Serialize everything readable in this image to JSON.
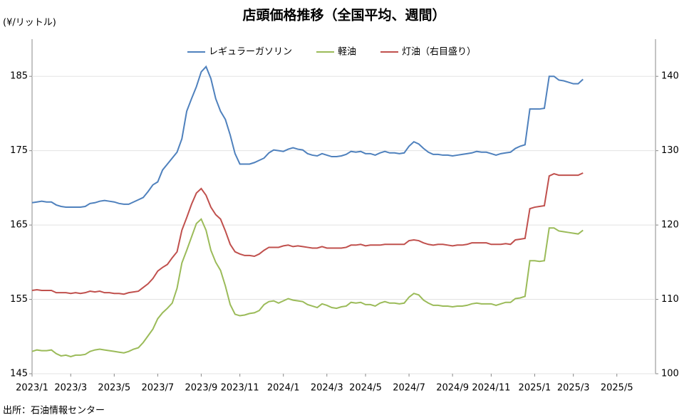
{
  "chart_data": {
    "type": "line",
    "title": "店頭価格推移（全国平均、週間）",
    "y_label": "(¥/リットル)",
    "source": "出所：石油情報センター",
    "categories": [
      "2023/1",
      null,
      null,
      null,
      null,
      null,
      null,
      null,
      "2023/3",
      null,
      null,
      null,
      null,
      null,
      null,
      null,
      null,
      "2023/5",
      null,
      null,
      null,
      null,
      null,
      null,
      null,
      null,
      "2023/7",
      null,
      null,
      null,
      null,
      null,
      null,
      null,
      null,
      "2023/9",
      null,
      null,
      null,
      null,
      null,
      null,
      null,
      "2023/11",
      null,
      null,
      null,
      null,
      null,
      null,
      null,
      null,
      "2024/1",
      null,
      null,
      null,
      null,
      null,
      null,
      null,
      null,
      "2024/3",
      null,
      null,
      null,
      null,
      null,
      null,
      null,
      "2024/5",
      null,
      null,
      null,
      null,
      null,
      null,
      null,
      null,
      "2024/7",
      null,
      null,
      null,
      null,
      null,
      null,
      null,
      null,
      "2024/9",
      null,
      null,
      null,
      null,
      null,
      null,
      null,
      "2024/11",
      null,
      null,
      null,
      null,
      null,
      null,
      null,
      null,
      "2025/1",
      null,
      null,
      null,
      null,
      null,
      null,
      null,
      "2025/3",
      null,
      null,
      null,
      null,
      null,
      null,
      null,
      null,
      "2025/5",
      null,
      null,
      null,
      null,
      null,
      null,
      null
    ],
    "series": [
      {
        "name": "レギュラーガソリン",
        "color": "#4f81bd",
        "axis": "y",
        "values": [
          168.0,
          168.1,
          168.2,
          168.1,
          168.1,
          167.7,
          167.5,
          167.4,
          167.4,
          167.4,
          167.4,
          167.5,
          167.9,
          168.0,
          168.2,
          168.3,
          168.2,
          168.1,
          167.9,
          167.8,
          167.8,
          168.1,
          168.4,
          168.7,
          169.5,
          170.4,
          170.8,
          172.4,
          173.2,
          174.0,
          174.8,
          176.6,
          180.3,
          182.0,
          183.6,
          185.6,
          186.3,
          184.7,
          182.0,
          180.3,
          179.2,
          177.1,
          174.6,
          173.2,
          173.2,
          173.2,
          173.4,
          173.7,
          174.0,
          174.7,
          175.1,
          175.0,
          174.9,
          175.2,
          175.4,
          175.2,
          175.1,
          174.6,
          174.4,
          174.3,
          174.6,
          174.4,
          174.2,
          174.2,
          174.3,
          174.5,
          174.9,
          174.8,
          174.9,
          174.6,
          174.6,
          174.4,
          174.7,
          174.9,
          174.7,
          174.7,
          174.6,
          174.7,
          175.6,
          176.2,
          175.9,
          175.3,
          174.8,
          174.5,
          174.5,
          174.4,
          174.4,
          174.3,
          174.4,
          174.5,
          174.6,
          174.7,
          174.9,
          174.8,
          174.8,
          174.6,
          174.4,
          174.6,
          174.7,
          174.8,
          175.3,
          175.6,
          175.8,
          180.6,
          180.6,
          180.6,
          180.7,
          185.0,
          185.0,
          184.5,
          184.4,
          184.2,
          184.0,
          184.0,
          184.6,
          null,
          null,
          null,
          null,
          null,
          null,
          null,
          null,
          null,
          null,
          null,
          null,
          null,
          null
        ]
      },
      {
        "name": "軽油",
        "color": "#9bbb59",
        "axis": "y",
        "values": [
          148.0,
          148.2,
          148.1,
          148.1,
          148.2,
          147.7,
          147.4,
          147.5,
          147.3,
          147.5,
          147.5,
          147.6,
          148.0,
          148.2,
          148.3,
          148.2,
          148.1,
          148.0,
          147.9,
          147.8,
          148.0,
          148.3,
          148.5,
          149.2,
          150.1,
          151.0,
          152.4,
          153.2,
          153.8,
          154.5,
          156.5,
          159.9,
          161.6,
          163.4,
          165.2,
          165.8,
          164.3,
          161.6,
          160.0,
          158.9,
          156.8,
          154.3,
          153.0,
          152.8,
          152.9,
          153.1,
          153.2,
          153.5,
          154.3,
          154.7,
          154.8,
          154.5,
          154.8,
          155.1,
          154.9,
          154.8,
          154.7,
          154.3,
          154.1,
          153.9,
          154.4,
          154.2,
          153.9,
          153.8,
          154.0,
          154.1,
          154.6,
          154.5,
          154.6,
          154.3,
          154.3,
          154.1,
          154.5,
          154.7,
          154.5,
          154.5,
          154.4,
          154.5,
          155.3,
          155.8,
          155.6,
          154.9,
          154.5,
          154.2,
          154.2,
          154.1,
          154.1,
          154.0,
          154.1,
          154.1,
          154.2,
          154.4,
          154.5,
          154.4,
          154.4,
          154.4,
          154.2,
          154.4,
          154.6,
          154.6,
          155.1,
          155.2,
          155.4,
          160.2,
          160.2,
          160.1,
          160.2,
          164.6,
          164.6,
          164.2,
          164.1,
          164.0,
          163.9,
          163.8,
          164.3,
          null,
          null,
          null,
          null,
          null,
          null,
          null,
          null,
          null,
          null,
          null,
          null,
          null,
          null
        ]
      },
      {
        "name": "灯油（右目盛り）",
        "color": "#c0504d",
        "axis": "y2",
        "values": [
          111.2,
          111.3,
          111.2,
          111.2,
          111.2,
          110.9,
          110.9,
          110.9,
          110.8,
          110.9,
          110.8,
          110.9,
          111.1,
          111.0,
          111.1,
          110.9,
          110.9,
          110.8,
          110.8,
          110.7,
          110.9,
          111.0,
          111.1,
          111.6,
          112.1,
          112.8,
          113.8,
          114.3,
          114.7,
          115.6,
          116.4,
          119.3,
          121.0,
          122.8,
          124.3,
          124.9,
          124.0,
          122.4,
          121.4,
          120.8,
          119.2,
          117.4,
          116.4,
          116.1,
          115.9,
          115.9,
          115.8,
          116.1,
          116.6,
          117.0,
          117.0,
          117.0,
          117.2,
          117.3,
          117.1,
          117.2,
          117.1,
          117.0,
          116.9,
          116.9,
          117.1,
          116.9,
          116.9,
          116.9,
          116.9,
          117.0,
          117.3,
          117.3,
          117.4,
          117.2,
          117.3,
          117.3,
          117.3,
          117.4,
          117.4,
          117.4,
          117.4,
          117.4,
          117.9,
          118.0,
          117.9,
          117.6,
          117.4,
          117.3,
          117.4,
          117.4,
          117.3,
          117.2,
          117.3,
          117.3,
          117.4,
          117.6,
          117.6,
          117.6,
          117.6,
          117.4,
          117.4,
          117.4,
          117.5,
          117.4,
          118.0,
          118.1,
          118.2,
          122.2,
          122.4,
          122.5,
          122.6,
          126.6,
          126.9,
          126.7,
          126.7,
          126.7,
          126.7,
          126.7,
          127.0,
          null,
          null,
          null,
          null,
          null,
          null,
          null,
          null,
          null,
          null,
          null,
          null,
          null,
          null
        ]
      }
    ],
    "ylim": [
      145,
      190
    ],
    "yticks": [
      145,
      155,
      165,
      175,
      185
    ],
    "y2lim": [
      100,
      145
    ],
    "y2ticks": [
      100,
      110,
      120,
      130,
      140
    ],
    "grid": true,
    "legend": "top"
  }
}
